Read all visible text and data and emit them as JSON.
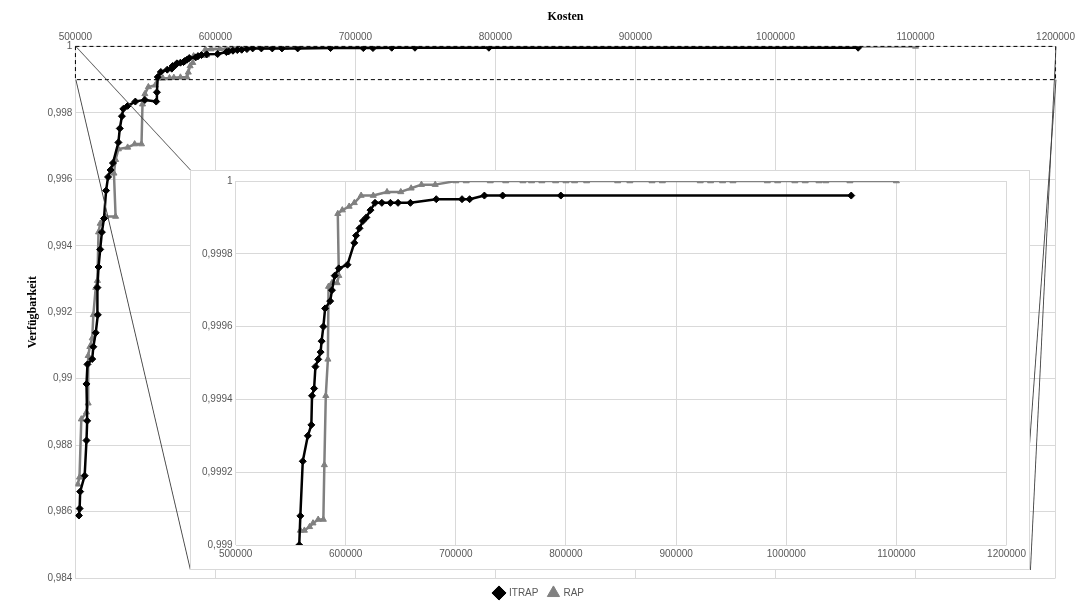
{
  "chart_data": [
    {
      "type": "line",
      "xlabel": "Kosten",
      "ylabel": "Verfügbarkeit",
      "xlim": [
        500000,
        1200000
      ],
      "xticks": [
        500000,
        600000,
        700000,
        800000,
        900000,
        1000000,
        1100000,
        1200000
      ],
      "ylim": [
        0.984,
        1
      ],
      "yticks": [
        {
          "value": 0.984,
          "label": "0,984"
        },
        {
          "value": 0.986,
          "label": "0,986"
        },
        {
          "value": 0.988,
          "label": "0,988"
        },
        {
          "value": 0.99,
          "label": "0,99"
        },
        {
          "value": 0.992,
          "label": "0,992"
        },
        {
          "value": 0.994,
          "label": "0,994"
        },
        {
          "value": 0.996,
          "label": "0,996"
        },
        {
          "value": 0.998,
          "label": "0,998"
        },
        {
          "value": 1,
          "label": "1"
        }
      ],
      "grid": true,
      "legend": "bottom",
      "line_style": "solid",
      "series": [
        {
          "name": "ITRAP",
          "color": "#000000",
          "marker": "diamond",
          "x": [
            502500,
            503000,
            503400,
            506600,
            507900,
            508400,
            507900,
            508600,
            512000,
            512800,
            514500,
            516000,
            515700,
            516500,
            517700,
            518900,
            520400,
            521900,
            523300,
            525100,
            526800,
            530700,
            531700,
            533200,
            534200,
            537300,
            542800,
            549600,
            557700,
            558200,
            558800,
            561000,
            565600,
            568800,
            569400,
            571300,
            572500,
            575000,
            577200,
            578100,
            579700,
            581300,
            585900,
            587500,
            590000,
            593750,
            601600,
            607800,
            609400,
            612500,
            615600,
            618750,
            622500,
            626600,
            632800,
            640600,
            647500,
            658750,
            682200,
            705600,
            712500,
            725900,
            742500,
            795300,
            1059000
          ],
          "values": [
            0.98588,
            0.98609,
            0.9866,
            0.98708,
            0.98814,
            0.98873,
            0.98984,
            0.99043,
            0.99059,
            0.99096,
            0.99138,
            0.99192,
            0.99274,
            0.99336,
            0.99389,
            0.99441,
            0.99482,
            0.99566,
            0.99607,
            0.99628,
            0.99649,
            0.99711,
            0.99753,
            0.9979,
            0.99812,
            0.99821,
            0.99834,
            0.99839,
            0.99834,
            0.99862,
            0.99908,
            0.99923,
            0.9993,
            0.99933,
            0.99941,
            0.99943,
            0.99949,
            0.99951,
            0.99953,
            0.99956,
            0.9996,
            0.99965,
            0.99967,
            0.9997,
            0.99974,
            0.99976,
            0.99977,
            0.99983,
            0.99985,
            0.99987,
            0.99989,
            0.9999,
            0.99992,
            0.99994,
            0.99994,
            0.99994,
            0.99994,
            0.99994,
            0.99995,
            0.99995,
            0.99995,
            0.99996,
            0.99996,
            0.99996,
            0.99996
          ]
        },
        {
          "name": "RAP",
          "color": "#808080",
          "marker": "triangle",
          "x": [
            501700,
            502900,
            504200,
            507900,
            509100,
            509100,
            510300,
            512000,
            512800,
            514500,
            515700,
            516500,
            517700,
            521400,
            528700,
            527500,
            528700,
            530700,
            537300,
            542300,
            547200,
            547900,
            549600,
            552100,
            557000,
            558800,
            562500,
            567200,
            570300,
            575000,
            579700,
            580600,
            581900,
            583800,
            584400,
            587500,
            592200,
            593750,
            592800,
            596900,
            603100,
            607800,
            614000,
            625000,
            637500,
            650000,
            659400,
            668750,
            681250,
            700000,
            709400,
            731250,
            745300,
            760900,
            768750,
            778100,
            790600,
            800000,
            807800,
            818750,
            846900,
            858000,
            878100,
            887500,
            921900,
            931300,
            942200,
            951600,
            982800,
            992200,
            1007800,
            1017200,
            1029700,
            1035900,
            1057800,
            1100000
          ],
          "values": [
            0.98682,
            0.98703,
            0.98878,
            0.98899,
            0.98926,
            0.99069,
            0.99096,
            0.99122,
            0.99192,
            0.99274,
            0.99295,
            0.99441,
            0.99467,
            0.99488,
            0.99488,
            0.99618,
            0.99659,
            0.99691,
            0.99696,
            0.99706,
            0.99706,
            0.99826,
            0.99857,
            0.99878,
            0.99883,
            0.99904,
            0.99904,
            0.99905,
            0.99906,
            0.99907,
            0.99907,
            0.99922,
            0.99941,
            0.99951,
            0.99971,
            0.99972,
            0.99972,
            0.99974,
            0.99991,
            0.99992,
            0.99993,
            0.99994,
            0.99996,
            0.99996,
            0.99997,
            0.99997,
            0.99998,
            0.99999,
            0.99999,
            1,
            1,
            1,
            1,
            1,
            1,
            1,
            1,
            1,
            1,
            1,
            1,
            1,
            1,
            1,
            1,
            1,
            1,
            1,
            1,
            1,
            1,
            1,
            1,
            1,
            1,
            1
          ]
        }
      ]
    },
    {
      "type": "line",
      "xlim": [
        500000,
        1200000
      ],
      "xticks": [
        500000,
        600000,
        700000,
        800000,
        900000,
        1000000,
        1100000,
        1200000
      ],
      "ylim": [
        0.999,
        1
      ],
      "yticks": [
        {
          "value": 0.999,
          "label": "0,999"
        },
        {
          "value": 0.9992,
          "label": "0,9992"
        },
        {
          "value": 0.9994,
          "label": "0,9994"
        },
        {
          "value": 0.9996,
          "label": "0,9996"
        },
        {
          "value": 0.9998,
          "label": "0,9998"
        },
        {
          "value": 1,
          "label": "1"
        }
      ],
      "grid": true,
      "line_style": "solid",
      "series": [
        {
          "color": "#000000",
          "marker": "diamond",
          "x": [
            557800,
            558800,
            561000,
            565600,
            568800,
            569400,
            571300,
            572500,
            575000,
            577200,
            578100,
            579700,
            581300,
            585900,
            587500,
            590000,
            593750,
            601600,
            607800,
            609400,
            612500,
            615600,
            618750,
            622500,
            626600,
            632800,
            640600,
            647500,
            658750,
            682200,
            705600,
            712500,
            725900,
            742500,
            795300,
            1059000
          ],
          "values": [
            0.999,
            0.99908,
            0.99923,
            0.9993,
            0.99933,
            0.99941,
            0.99943,
            0.99949,
            0.99951,
            0.99953,
            0.99956,
            0.9996,
            0.99965,
            0.99967,
            0.9997,
            0.99974,
            0.99976,
            0.99977,
            0.99983,
            0.99985,
            0.99987,
            0.99989,
            0.9999,
            0.99992,
            0.99994,
            0.99994,
            0.99994,
            0.99994,
            0.99994,
            0.99995,
            0.99995,
            0.99995,
            0.99996,
            0.99996,
            0.99996,
            0.99996
          ]
        },
        {
          "color": "#808080",
          "marker": "triangle",
          "x": [
            558800,
            562500,
            567200,
            570300,
            575000,
            579700,
            580600,
            581900,
            583800,
            584400,
            587500,
            592200,
            593750,
            592800,
            596900,
            603100,
            607800,
            614000,
            625000,
            637500,
            650000,
            659400,
            668750,
            681250,
            700000,
            709400,
            731250,
            745300,
            760900,
            768750,
            778100,
            790600,
            800000,
            807800,
            818750,
            846900,
            858000,
            878100,
            887500,
            921900,
            931300,
            942200,
            951600,
            982800,
            992200,
            1007800,
            1017200,
            1029700,
            1035900,
            1057800,
            1100000
          ],
          "values": [
            0.99904,
            0.99904,
            0.99905,
            0.99906,
            0.99907,
            0.99907,
            0.99922,
            0.99941,
            0.99951,
            0.99971,
            0.99972,
            0.99972,
            0.99974,
            0.99991,
            0.99992,
            0.99993,
            0.99994,
            0.99996,
            0.99996,
            0.99997,
            0.99997,
            0.99998,
            0.99999,
            0.99999,
            1,
            1,
            1,
            1,
            1,
            1,
            1,
            1,
            1,
            1,
            1,
            1,
            1,
            1,
            1,
            1,
            1,
            1,
            1,
            1,
            1,
            1,
            1,
            1,
            1,
            1,
            1
          ]
        }
      ]
    }
  ]
}
